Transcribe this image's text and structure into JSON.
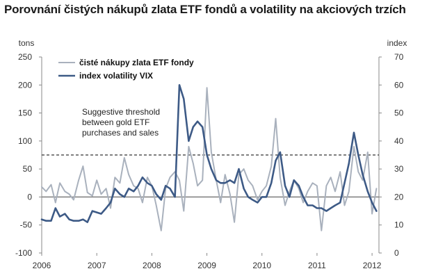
{
  "chart_data": {
    "type": "line",
    "title": "Porovnání čistých nákupů zlata ETF fondů a volatility na akciových trzích",
    "left_unit": "tons",
    "right_unit": "index",
    "ylim_left": [
      -100,
      250
    ],
    "ylim_right": [
      0,
      70
    ],
    "x_range": [
      2006.0,
      2012.125
    ],
    "x_ticks": [
      "2006",
      "2007",
      "2008",
      "2009",
      "2010",
      "2011",
      "2012"
    ],
    "y_ticks_left": [
      "250",
      "200",
      "150",
      "100",
      "50",
      "0",
      "-50",
      "-100"
    ],
    "y_ticks_right": [
      "70",
      "60",
      "50",
      "40",
      "30",
      "20",
      "10",
      "0"
    ],
    "threshold": {
      "value": 75,
      "axis": "left",
      "label_lines": [
        "Suggestive threshold",
        "between gold ETF",
        "purchases and sales"
      ]
    },
    "legend_placement": "top-left",
    "series": [
      {
        "name": "čisté nákupy zlata ETF fondy",
        "axis": "left",
        "color": "#a9b1bd",
        "x": [
          2006.0,
          2006.08,
          2006.17,
          2006.25,
          2006.33,
          2006.42,
          2006.5,
          2006.58,
          2006.67,
          2006.75,
          2006.83,
          2006.92,
          2007.0,
          2007.08,
          2007.17,
          2007.25,
          2007.33,
          2007.42,
          2007.5,
          2007.58,
          2007.67,
          2007.75,
          2007.83,
          2007.92,
          2008.0,
          2008.08,
          2008.17,
          2008.25,
          2008.33,
          2008.42,
          2008.5,
          2008.58,
          2008.67,
          2008.75,
          2008.83,
          2008.92,
          2009.0,
          2009.08,
          2009.17,
          2009.25,
          2009.33,
          2009.42,
          2009.5,
          2009.58,
          2009.67,
          2009.75,
          2009.83,
          2009.92,
          2010.0,
          2010.08,
          2010.17,
          2010.25,
          2010.33,
          2010.42,
          2010.5,
          2010.58,
          2010.67,
          2010.75,
          2010.83,
          2010.92,
          2011.0,
          2011.08,
          2011.17,
          2011.25,
          2011.33,
          2011.42,
          2011.5,
          2011.58,
          2011.67,
          2011.75,
          2011.83,
          2011.92,
          2012.0,
          2012.08
        ],
        "values": [
          18,
          10,
          22,
          -10,
          25,
          10,
          5,
          -5,
          30,
          55,
          8,
          2,
          30,
          5,
          15,
          -20,
          35,
          25,
          70,
          40,
          20,
          15,
          -10,
          35,
          20,
          -15,
          -60,
          15,
          35,
          45,
          30,
          -25,
          90,
          60,
          20,
          30,
          195,
          80,
          30,
          -10,
          40,
          5,
          -45,
          40,
          50,
          30,
          20,
          -5,
          10,
          20,
          55,
          140,
          35,
          -15,
          10,
          30,
          15,
          -10,
          10,
          25,
          20,
          -60,
          20,
          35,
          10,
          45,
          -15,
          10,
          90,
          45,
          30,
          80,
          -30,
          15
        ]
      },
      {
        "name": "index volatility VIX",
        "axis": "right",
        "color": "#3d5a86",
        "x": [
          2006.0,
          2006.08,
          2006.17,
          2006.25,
          2006.33,
          2006.42,
          2006.5,
          2006.58,
          2006.67,
          2006.75,
          2006.83,
          2006.92,
          2007.0,
          2007.08,
          2007.17,
          2007.25,
          2007.33,
          2007.42,
          2007.5,
          2007.58,
          2007.67,
          2007.75,
          2007.83,
          2007.92,
          2008.0,
          2008.08,
          2008.17,
          2008.25,
          2008.33,
          2008.42,
          2008.5,
          2008.58,
          2008.67,
          2008.75,
          2008.83,
          2008.92,
          2009.0,
          2009.08,
          2009.17,
          2009.25,
          2009.33,
          2009.42,
          2009.5,
          2009.58,
          2009.67,
          2009.75,
          2009.83,
          2009.92,
          2010.0,
          2010.08,
          2010.17,
          2010.25,
          2010.33,
          2010.42,
          2010.5,
          2010.58,
          2010.67,
          2010.75,
          2010.83,
          2010.92,
          2011.0,
          2011.08,
          2011.17,
          2011.25,
          2011.33,
          2011.42,
          2011.5,
          2011.58,
          2011.67,
          2011.75,
          2011.83,
          2011.92,
          2012.0,
          2012.08
        ],
        "values": [
          12,
          11.5,
          11.5,
          16,
          13,
          14,
          12,
          11.5,
          11.5,
          12,
          11,
          15,
          14.5,
          14,
          16,
          18,
          23,
          21,
          20,
          23,
          22,
          24,
          27,
          25,
          24,
          21,
          19,
          24,
          23,
          20,
          60,
          55,
          40,
          45,
          47,
          45,
          35,
          30,
          26,
          25,
          25,
          26,
          25,
          30,
          23,
          20,
          19,
          18,
          20,
          20,
          25,
          33,
          36,
          24,
          20,
          26,
          24,
          20,
          17,
          17,
          16,
          16,
          15,
          16,
          17,
          18,
          25,
          32,
          43,
          35,
          28,
          22,
          18,
          15
        ]
      }
    ],
    "grid": false
  }
}
